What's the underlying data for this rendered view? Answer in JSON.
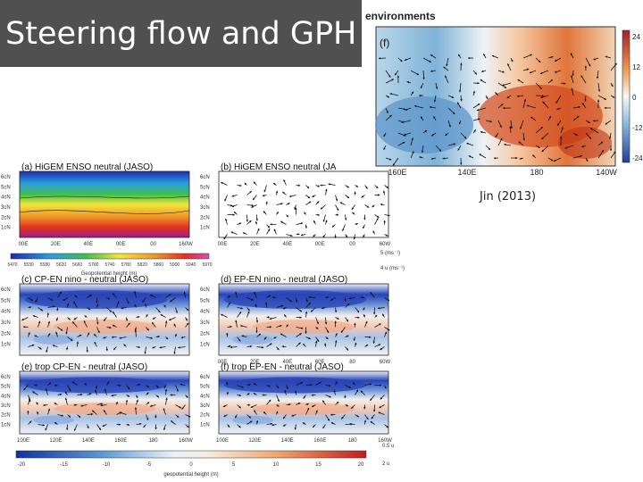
{
  "slide": {
    "title": "Steering flow and GPH",
    "credit": "Jin (2013)"
  },
  "colors": {
    "title_bg": "#505050",
    "title_text": "#ffffff",
    "warm": "#d9401f",
    "cool": "#2a57c9",
    "neutral": "#f4f4f4"
  },
  "top_figure": {
    "heading": "environments",
    "panel_label": "(f)",
    "x_ticks": [
      "160E",
      "140E",
      "180",
      "140W"
    ],
    "colorbar_ticks": [
      "24",
      "12",
      "0",
      "-12",
      "-24"
    ]
  },
  "left_figure": {
    "panels": [
      {
        "label": "(a) HiGEM ENSO neutral (JASO)",
        "y_ticks": [
          "6cN",
          "5cN",
          "4cN",
          "3cN",
          "2cN",
          "1cN"
        ],
        "x_ticks": [
          "00E",
          "20E",
          "40E",
          "00E",
          "00",
          "160W"
        ]
      },
      {
        "label": "(b) HiGEM ENSO neutral (JA",
        "y_ticks": [
          "6cN",
          "5cN",
          "4cN",
          "3cN",
          "2cN",
          "1cN"
        ],
        "x_ticks": [
          "00E",
          "20E",
          "40E",
          "00E",
          "00",
          "60W"
        ]
      },
      {
        "label": "(c) CP-EN nino - neutral (JASO)",
        "y_ticks": [
          "6cN",
          "5cN",
          "4cN",
          "3cN",
          "2cN",
          "1cN"
        ],
        "x_ticks": []
      },
      {
        "label": "(d) EP-EN nino - neutral (JASO)",
        "y_ticks": [
          "6cN",
          "5cN",
          "4cN",
          "3cN",
          "2cN",
          "1cN"
        ],
        "x_ticks": [
          "00E",
          "20E",
          "40E",
          "60E",
          "80",
          "60W"
        ]
      },
      {
        "label": "(e) trop CP-EN - neutral (JASO)",
        "y_ticks": [
          "6cN",
          "5cN",
          "4cN",
          "3cN",
          "2cN",
          "1cN"
        ],
        "x_ticks": [
          "100E",
          "120E",
          "140E",
          "160E",
          "180",
          "160W"
        ]
      },
      {
        "label": "(f) trop EP-EN - neutral (JASO)",
        "y_ticks": [
          "6cN",
          "5cN",
          "4cN",
          "3cN",
          "2cN",
          "1cN"
        ],
        "x_ticks": [
          "100E",
          "120E",
          "140E",
          "160E",
          "180",
          "160W"
        ]
      }
    ],
    "colorbar_mid_label": "Geopotential height (m)",
    "colorbar_mid_ticks": [
      "5470",
      "5530",
      "5580",
      "5620",
      "5660",
      "5700",
      "5740",
      "5780",
      "5820",
      "5860",
      "5900",
      "5940",
      "5970"
    ],
    "colorbar_bottom_label": "geopotential height (m)",
    "colorbar_bottom_ticks": [
      "-20",
      "-15",
      "-10",
      "-5",
      "0",
      "5",
      "10",
      "15",
      "20"
    ],
    "vector_key_mid": [
      "5 (ms⁻¹)",
      "4 u (ms⁻¹)"
    ],
    "vector_key_bottom": [
      "0.5 u",
      "2 u"
    ]
  }
}
